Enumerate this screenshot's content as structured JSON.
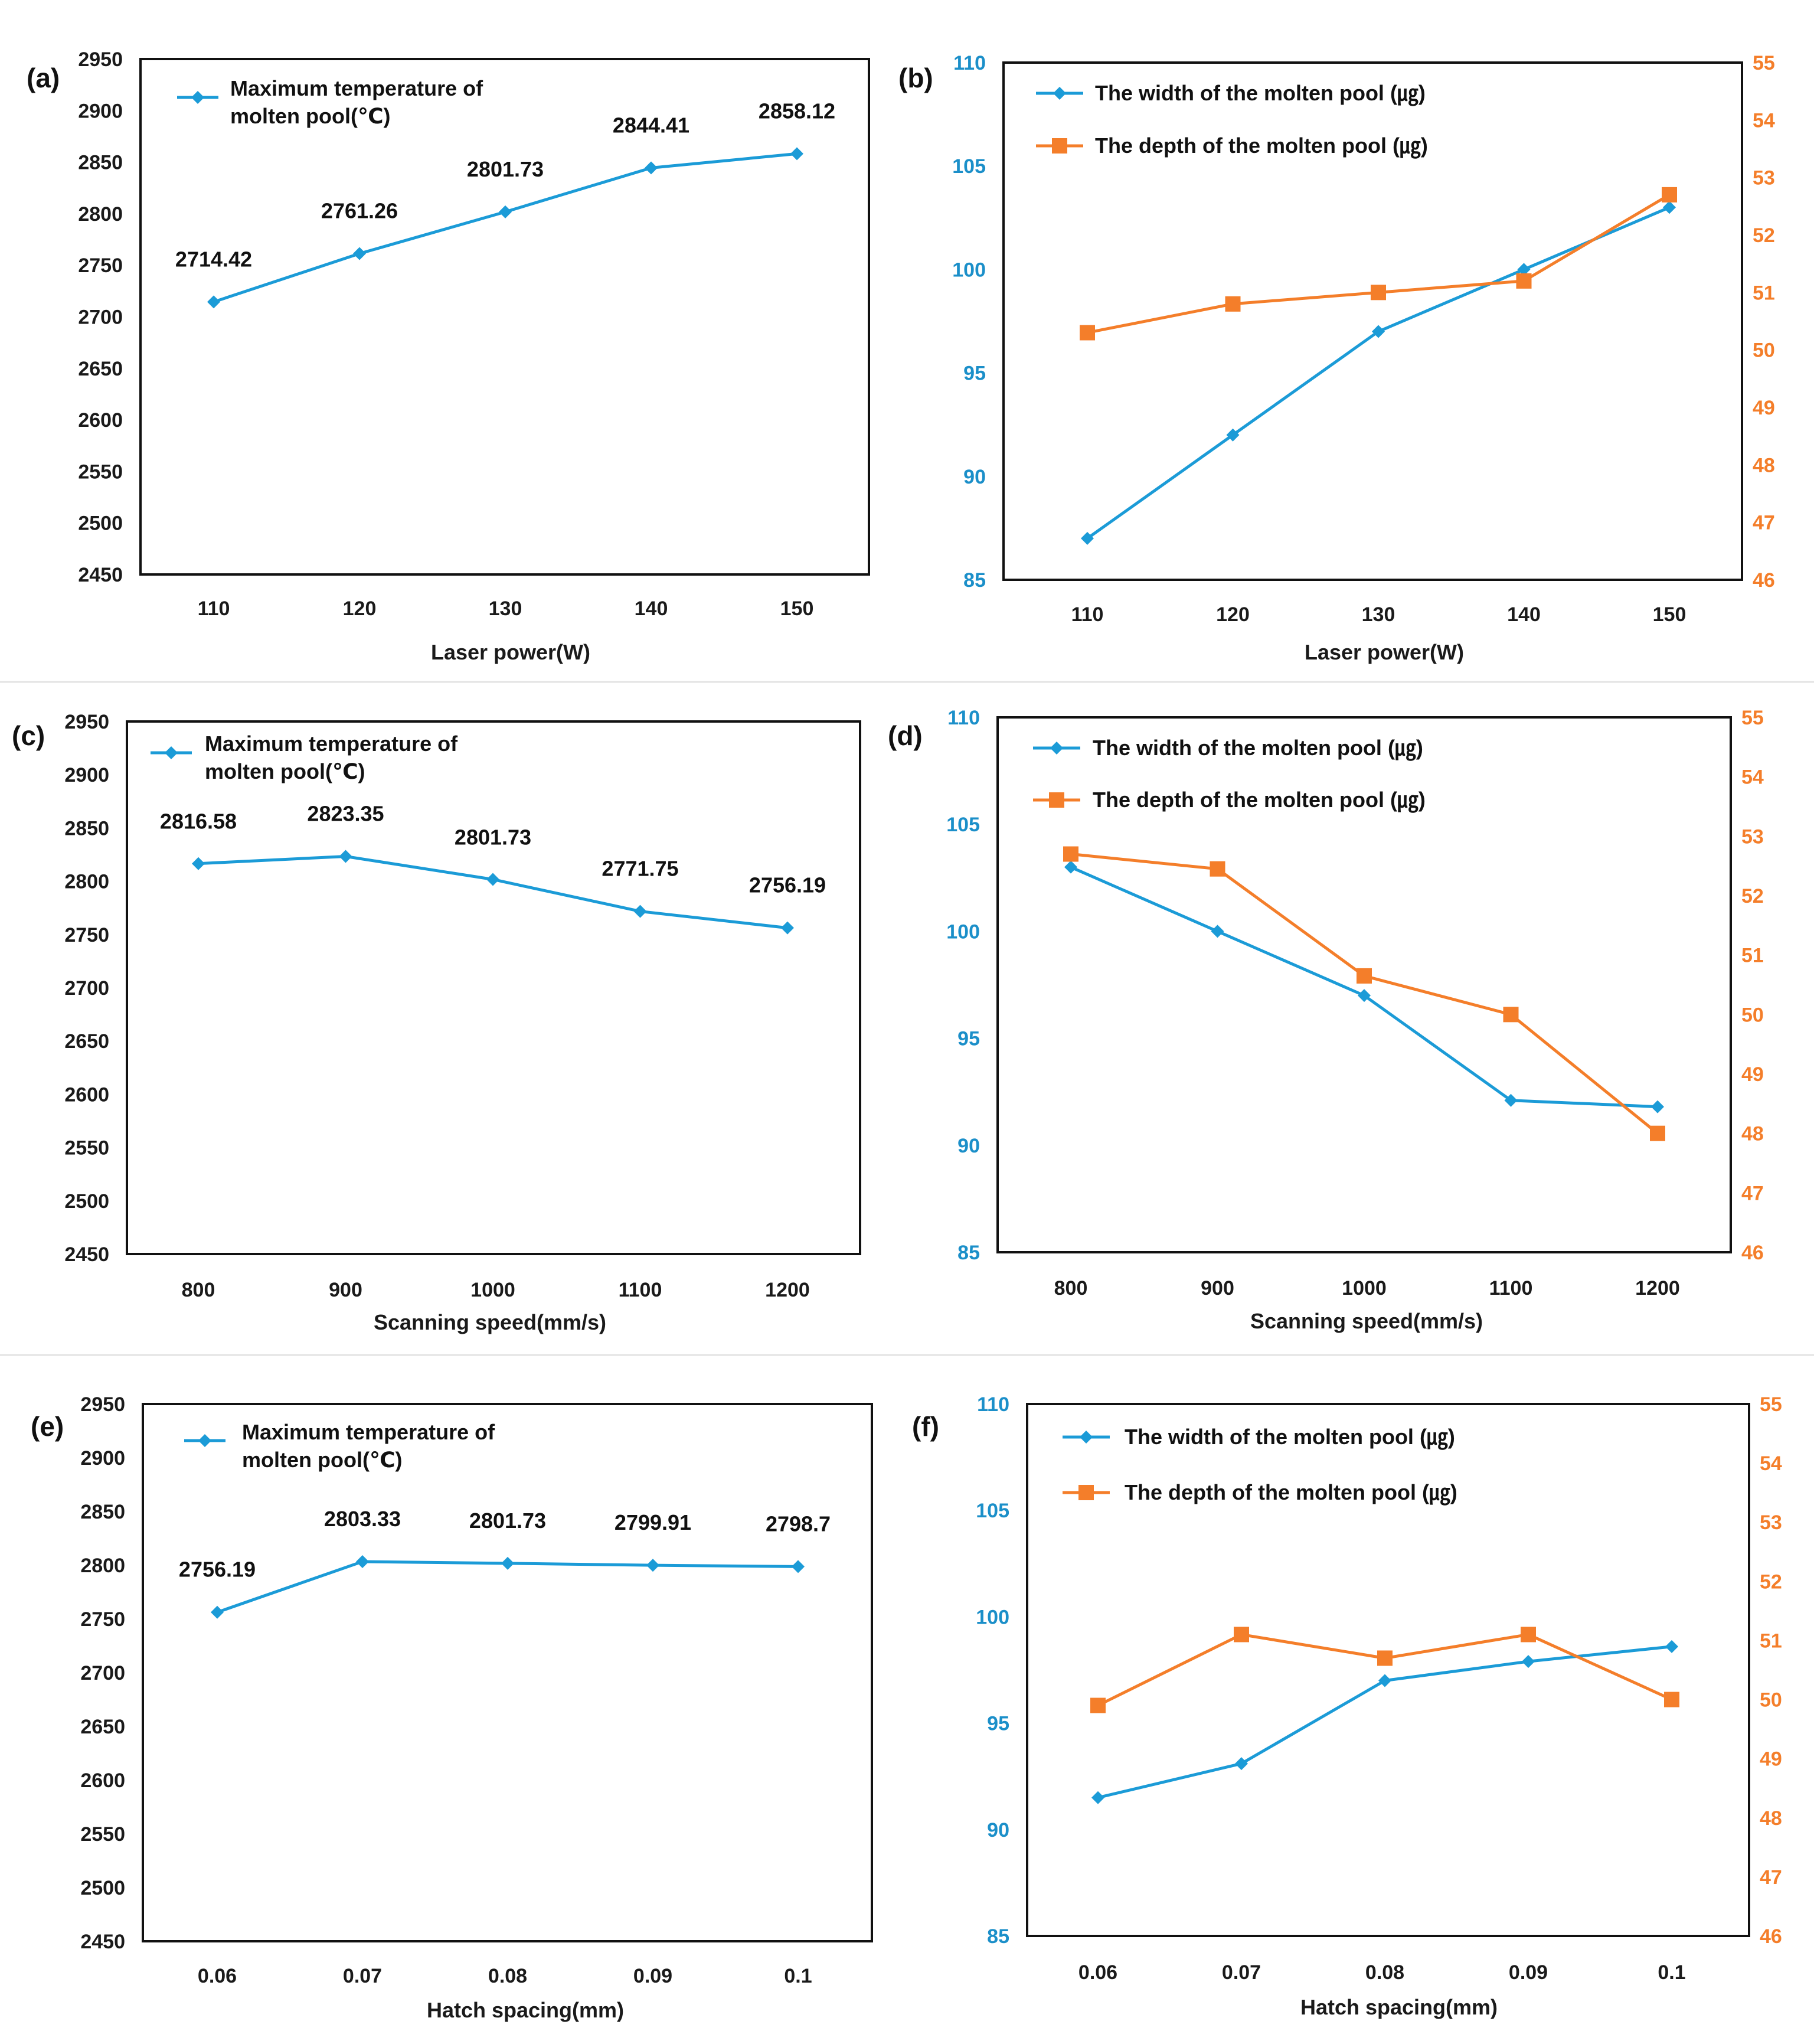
{
  "colors": {
    "blue": "#1b9bd7",
    "orange": "#f47e2a",
    "axis": "#111111"
  },
  "chart_data": [
    {
      "panel": "(a)",
      "type": "line",
      "categories": [
        "110",
        "120",
        "130",
        "140",
        "150"
      ],
      "series": [
        {
          "name": "Maximum temperature of molten pool(℃)",
          "legend_lines": [
            "Maximum temperature of",
            "molten pool(℃)"
          ],
          "values": [
            2714.42,
            2761.26,
            2801.73,
            2844.41,
            2858.12
          ],
          "labels": [
            "2714.42",
            "2761.26",
            "2801.73",
            "2844.41",
            "2858.12"
          ],
          "color": "#1b9bd7",
          "marker": "diamond"
        }
      ],
      "xlabel": "Laser power(W)",
      "ylim": [
        2450,
        2950
      ],
      "yticks": [
        "2450",
        "2500",
        "2550",
        "2600",
        "2650",
        "2700",
        "2750",
        "2800",
        "2850",
        "2900",
        "2950"
      ]
    },
    {
      "panel": "(b)",
      "type": "line",
      "categories": [
        "110",
        "120",
        "130",
        "140",
        "150"
      ],
      "series": [
        {
          "name": "The width of the molten pool (㎍)",
          "axis": "left",
          "values": [
            87,
            92,
            97,
            100,
            103
          ],
          "color": "#1b9bd7",
          "marker": "diamond"
        },
        {
          "name": "The depth of the molten pool (㎍)",
          "axis": "right",
          "values": [
            50.3,
            50.8,
            51.0,
            51.2,
            52.7
          ],
          "color": "#f47e2a",
          "marker": "square"
        }
      ],
      "xlabel": "Laser power(W)",
      "ylim": [
        85,
        110
      ],
      "yticks": [
        "85",
        "90",
        "95",
        "100",
        "105",
        "110"
      ],
      "y2lim": [
        46,
        55
      ],
      "y2ticks": [
        "46",
        "47",
        "48",
        "49",
        "50",
        "51",
        "52",
        "53",
        "54",
        "55"
      ]
    },
    {
      "panel": "(c)",
      "type": "line",
      "categories": [
        "800",
        "900",
        "1000",
        "1100",
        "1200"
      ],
      "series": [
        {
          "name": "Maximum temperature of molten pool(℃)",
          "legend_lines": [
            "Maximum temperature of",
            "molten pool(℃)"
          ],
          "values": [
            2816.58,
            2823.35,
            2801.73,
            2771.75,
            2756.19
          ],
          "labels": [
            "2816.58",
            "2823.35",
            "2801.73",
            "2771.75",
            "2756.19"
          ],
          "color": "#1b9bd7",
          "marker": "diamond"
        }
      ],
      "xlabel": "Scanning speed(mm/s)",
      "ylim": [
        2450,
        2950
      ],
      "yticks": [
        "2450",
        "2500",
        "2550",
        "2600",
        "2650",
        "2700",
        "2750",
        "2800",
        "2850",
        "2900",
        "2950"
      ]
    },
    {
      "panel": "(d)",
      "type": "line",
      "categories": [
        "800",
        "900",
        "1000",
        "1100",
        "1200"
      ],
      "series": [
        {
          "name": "The width of the molten pool (㎍)",
          "axis": "left",
          "values": [
            103,
            100,
            97,
            92.1,
            91.8
          ],
          "color": "#1b9bd7",
          "marker": "diamond"
        },
        {
          "name": "The depth of the molten pool (㎍)",
          "axis": "right",
          "values": [
            52.7,
            52.45,
            50.65,
            50.0,
            48.0
          ],
          "color": "#f47e2a",
          "marker": "square"
        }
      ],
      "xlabel": "Scanning speed(mm/s)",
      "ylim": [
        85,
        110
      ],
      "yticks": [
        "85",
        "90",
        "95",
        "100",
        "105",
        "110"
      ],
      "y2lim": [
        46,
        55
      ],
      "y2ticks": [
        "46",
        "47",
        "48",
        "49",
        "50",
        "51",
        "52",
        "53",
        "54",
        "55"
      ]
    },
    {
      "panel": "(e)",
      "type": "line",
      "categories": [
        "0.06",
        "0.07",
        "0.08",
        "0.09",
        "0.1"
      ],
      "series": [
        {
          "name": "Maximum temperature of molten pool(℃)",
          "legend_lines": [
            "Maximum temperature of",
            "molten pool(℃)"
          ],
          "values": [
            2756.19,
            2803.33,
            2801.73,
            2799.91,
            2798.7
          ],
          "labels": [
            "2756.19",
            "2803.33",
            "2801.73",
            "2799.91",
            "2798.7"
          ],
          "color": "#1b9bd7",
          "marker": "diamond"
        }
      ],
      "xlabel": "Hatch spacing(mm)",
      "ylim": [
        2450,
        2950
      ],
      "yticks": [
        "2450",
        "2500",
        "2550",
        "2600",
        "2650",
        "2700",
        "2750",
        "2800",
        "2850",
        "2900",
        "2950"
      ]
    },
    {
      "panel": "(f)",
      "type": "line",
      "categories": [
        "0.06",
        "0.07",
        "0.08",
        "0.09",
        "0.1"
      ],
      "series": [
        {
          "name": "The width of the molten pool (㎍)",
          "axis": "left",
          "values": [
            91.5,
            93.1,
            97,
            97.9,
            98.6
          ],
          "color": "#1b9bd7",
          "marker": "diamond"
        },
        {
          "name": "The depth of the molten pool (㎍)",
          "axis": "right",
          "values": [
            49.9,
            51.1,
            50.7,
            51.1,
            50.0
          ],
          "color": "#f47e2a",
          "marker": "square"
        }
      ],
      "xlabel": "Hatch spacing(mm)",
      "ylim": [
        85,
        110
      ],
      "yticks": [
        "85",
        "90",
        "95",
        "100",
        "105",
        "110"
      ],
      "y2lim": [
        46,
        55
      ],
      "y2ticks": [
        "46",
        "47",
        "48",
        "49",
        "50",
        "51",
        "52",
        "53",
        "54",
        "55"
      ]
    }
  ]
}
